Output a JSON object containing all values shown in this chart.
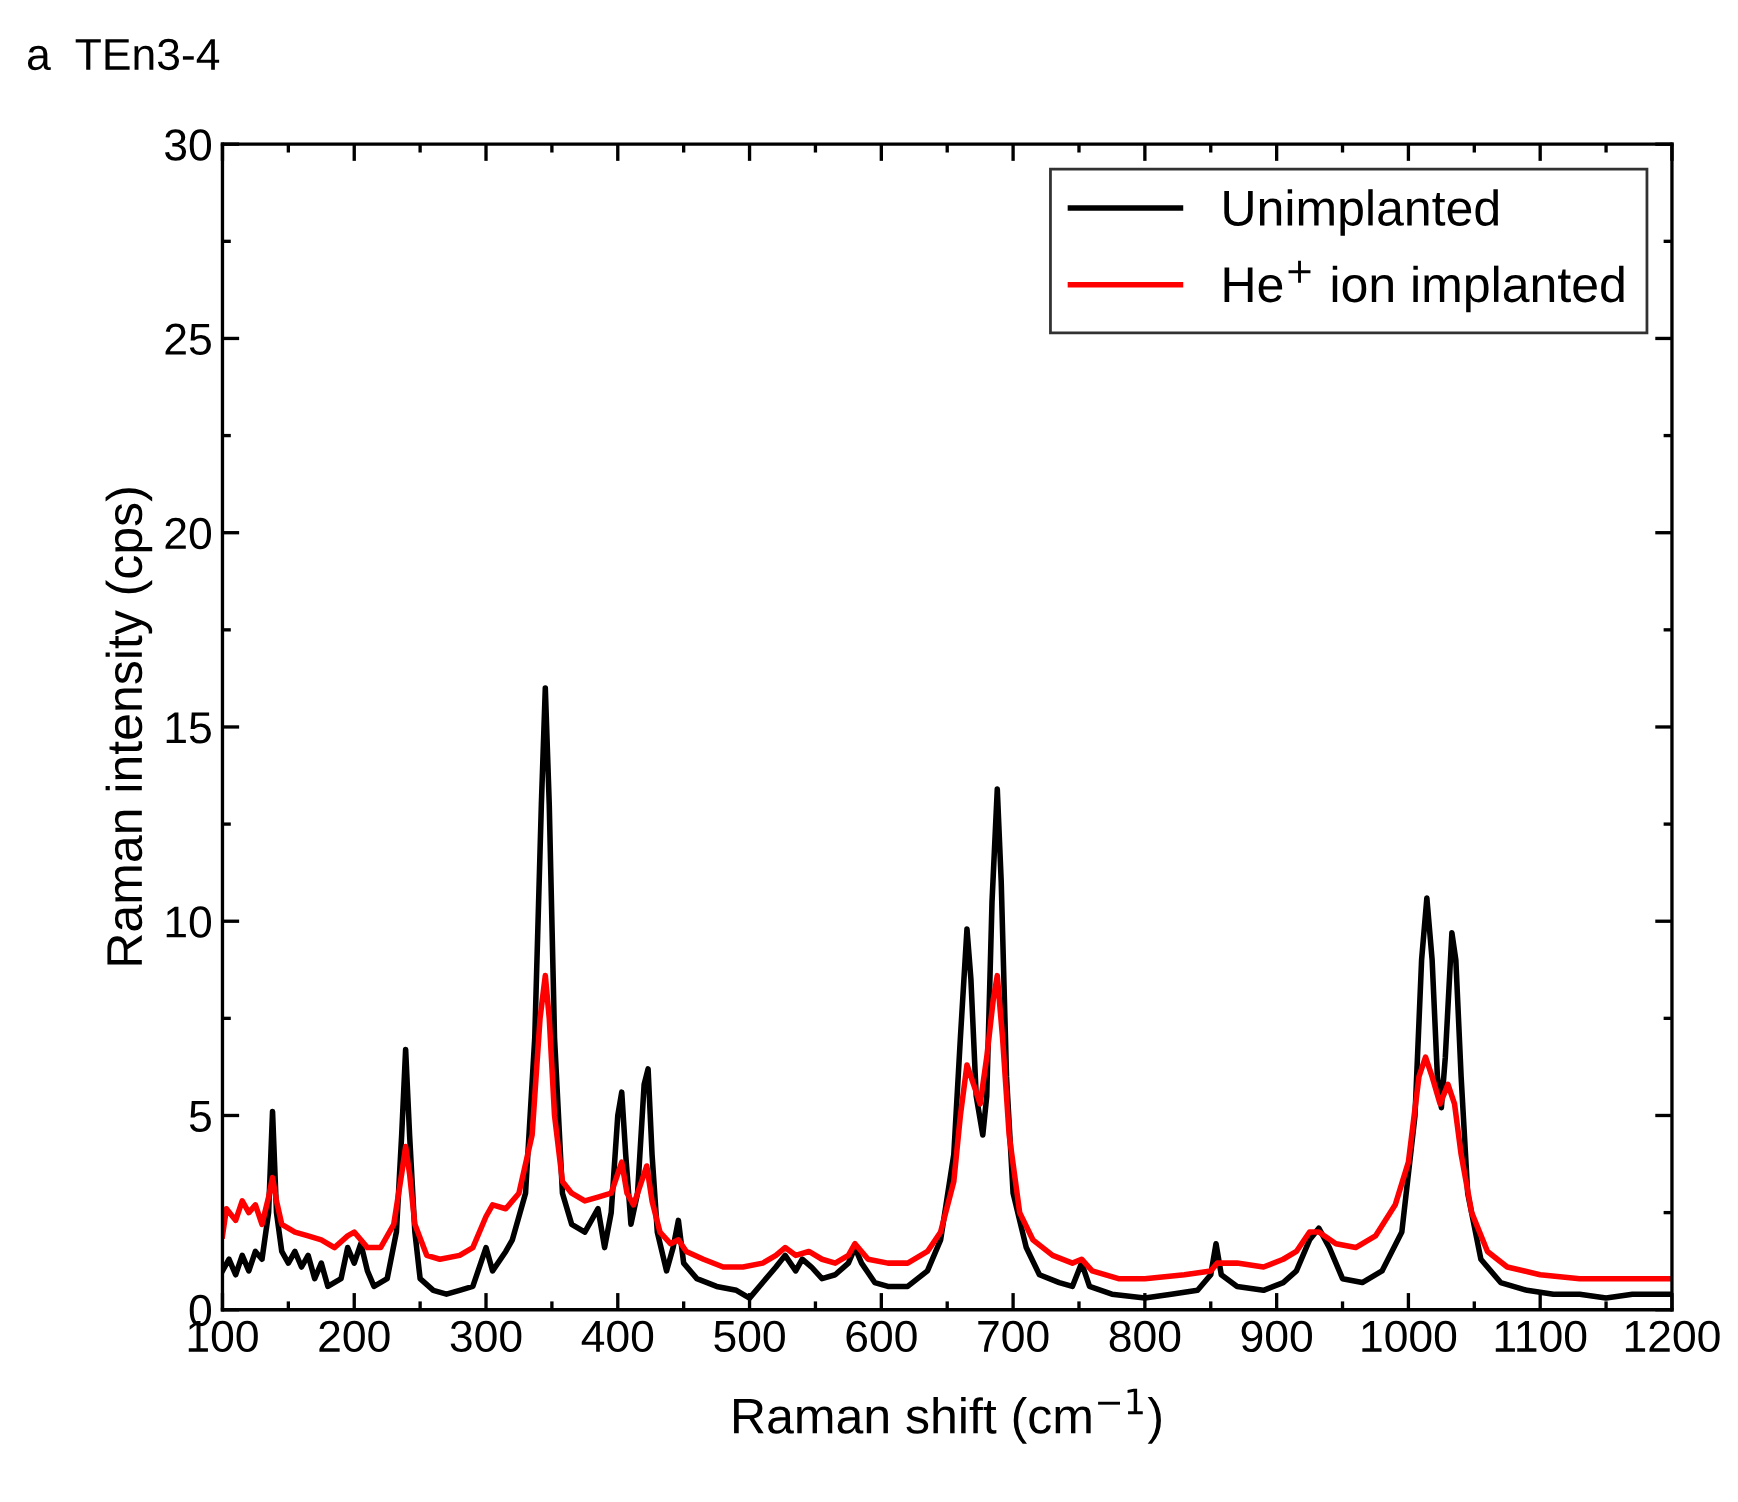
{
  "chart_data": {
    "type": "line",
    "title": "a  TEn3-4",
    "xlabel": "Raman shift (cm$^{−1}$)",
    "ylabel": "Raman intensity (cps)",
    "xlim": [
      100,
      1200
    ],
    "xticks": [
      100,
      200,
      300,
      400,
      500,
      600,
      700,
      800,
      900,
      1000,
      1100,
      1200
    ],
    "ylim": [
      0,
      30
    ],
    "yticks": [
      0,
      5,
      10,
      15,
      20,
      25,
      30
    ],
    "legend": "top right",
    "grid": false,
    "series": [
      {
        "name": "Unimplanted",
        "color": "#000000",
        "x": [
          100,
          105,
          110,
          115,
          120,
          125,
          130,
          135,
          138,
          141,
          145,
          150,
          155,
          160,
          165,
          170,
          175,
          180,
          190,
          195,
          200,
          205,
          210,
          215,
          225,
          232,
          236,
          239,
          242,
          246,
          250,
          260,
          270,
          280,
          290,
          300,
          305,
          315,
          320,
          330,
          337,
          342,
          345,
          348,
          352,
          358,
          365,
          375,
          385,
          390,
          395,
          400,
          403,
          406,
          410,
          415,
          420,
          423,
          426,
          430,
          437,
          442,
          446,
          450,
          460,
          475,
          490,
          500,
          510,
          520,
          527,
          535,
          540,
          547,
          555,
          565,
          575,
          580,
          585,
          595,
          605,
          620,
          635,
          645,
          655,
          660,
          665,
          668,
          672,
          677,
          680,
          684,
          688,
          691,
          695,
          700,
          710,
          720,
          735,
          745,
          752,
          758,
          775,
          800,
          820,
          840,
          850,
          854,
          858,
          870,
          890,
          905,
          915,
          925,
          932,
          940,
          950,
          965,
          980,
          995,
          1005,
          1010,
          1014,
          1018,
          1022,
          1025,
          1028,
          1033,
          1036,
          1040,
          1045,
          1055,
          1070,
          1090,
          1110,
          1130,
          1150,
          1170,
          1200
        ],
        "values": [
          1.0,
          1.3,
          0.9,
          1.4,
          1.0,
          1.5,
          1.3,
          2.5,
          5.1,
          2.5,
          1.5,
          1.2,
          1.5,
          1.1,
          1.4,
          0.8,
          1.2,
          0.6,
          0.8,
          1.6,
          1.2,
          1.7,
          1.0,
          0.6,
          0.8,
          2.0,
          4.5,
          6.7,
          4.5,
          2.0,
          0.8,
          0.5,
          0.4,
          0.5,
          0.6,
          1.6,
          1.0,
          1.5,
          1.8,
          3.0,
          7.0,
          13.0,
          16.0,
          13.0,
          7.0,
          3.0,
          2.2,
          2.0,
          2.6,
          1.6,
          2.5,
          5.0,
          5.6,
          4.0,
          2.2,
          3.0,
          5.8,
          6.2,
          4.0,
          2.0,
          1.0,
          1.6,
          2.3,
          1.2,
          0.8,
          0.6,
          0.5,
          0.3,
          0.7,
          1.1,
          1.4,
          1.0,
          1.3,
          1.1,
          0.8,
          0.9,
          1.2,
          1.6,
          1.2,
          0.7,
          0.6,
          0.6,
          1.0,
          1.8,
          4.0,
          7.0,
          9.8,
          8.5,
          5.5,
          4.5,
          5.5,
          10.5,
          13.4,
          11.0,
          6.0,
          3.0,
          1.6,
          0.9,
          0.7,
          0.6,
          1.2,
          0.6,
          0.4,
          0.3,
          0.4,
          0.5,
          0.9,
          1.7,
          0.9,
          0.6,
          0.5,
          0.7,
          1.0,
          1.8,
          2.1,
          1.6,
          0.8,
          0.7,
          1.0,
          2.0,
          5.0,
          9.0,
          10.6,
          9.0,
          6.0,
          5.2,
          6.5,
          9.7,
          9.0,
          6.0,
          3.0,
          1.3,
          0.7,
          0.5,
          0.4,
          0.4,
          0.3,
          0.4,
          0.4
        ]
      },
      {
        "name": "He$^{+}$ ion implanted",
        "color": "#ff0000",
        "x": [
          100,
          103,
          110,
          115,
          120,
          125,
          130,
          135,
          138,
          141,
          145,
          155,
          165,
          175,
          185,
          195,
          200,
          210,
          220,
          230,
          236,
          239,
          242,
          246,
          255,
          265,
          280,
          290,
          300,
          305,
          315,
          325,
          335,
          341,
          345,
          348,
          352,
          358,
          365,
          375,
          385,
          395,
          400,
          403,
          407,
          412,
          418,
          422,
          426,
          432,
          440,
          446,
          452,
          465,
          480,
          495,
          510,
          520,
          527,
          535,
          545,
          555,
          565,
          575,
          580,
          590,
          605,
          620,
          635,
          645,
          655,
          660,
          665,
          670,
          675,
          680,
          685,
          688,
          692,
          697,
          705,
          715,
          730,
          745,
          752,
          760,
          780,
          800,
          830,
          850,
          855,
          870,
          890,
          905,
          915,
          925,
          932,
          945,
          960,
          975,
          990,
          1000,
          1008,
          1013,
          1018,
          1024,
          1030,
          1035,
          1040,
          1048,
          1060,
          1075,
          1100,
          1130,
          1160,
          1200
        ],
        "values": [
          1.9,
          2.6,
          2.3,
          2.8,
          2.5,
          2.7,
          2.2,
          2.9,
          3.4,
          2.8,
          2.2,
          2.0,
          1.9,
          1.8,
          1.6,
          1.9,
          2.0,
          1.6,
          1.6,
          2.2,
          3.5,
          4.2,
          3.5,
          2.2,
          1.4,
          1.3,
          1.4,
          1.6,
          2.4,
          2.7,
          2.6,
          3.0,
          4.5,
          7.5,
          8.6,
          7.5,
          5.0,
          3.3,
          3.0,
          2.8,
          2.9,
          3.0,
          3.5,
          3.8,
          3.0,
          2.7,
          3.3,
          3.7,
          2.8,
          2.0,
          1.7,
          1.8,
          1.5,
          1.3,
          1.1,
          1.1,
          1.2,
          1.4,
          1.6,
          1.4,
          1.5,
          1.3,
          1.2,
          1.4,
          1.7,
          1.3,
          1.2,
          1.2,
          1.5,
          2.0,
          3.3,
          5.0,
          6.3,
          5.8,
          5.3,
          6.5,
          8.0,
          8.6,
          7.0,
          4.5,
          2.5,
          1.8,
          1.4,
          1.2,
          1.3,
          1.0,
          0.8,
          0.8,
          0.9,
          1.0,
          1.2,
          1.2,
          1.1,
          1.3,
          1.5,
          2.0,
          2.0,
          1.7,
          1.6,
          1.9,
          2.7,
          3.8,
          6.0,
          6.5,
          6.0,
          5.3,
          5.8,
          5.3,
          4.0,
          2.5,
          1.5,
          1.1,
          0.9,
          0.8,
          0.8,
          0.8
        ]
      }
    ]
  }
}
